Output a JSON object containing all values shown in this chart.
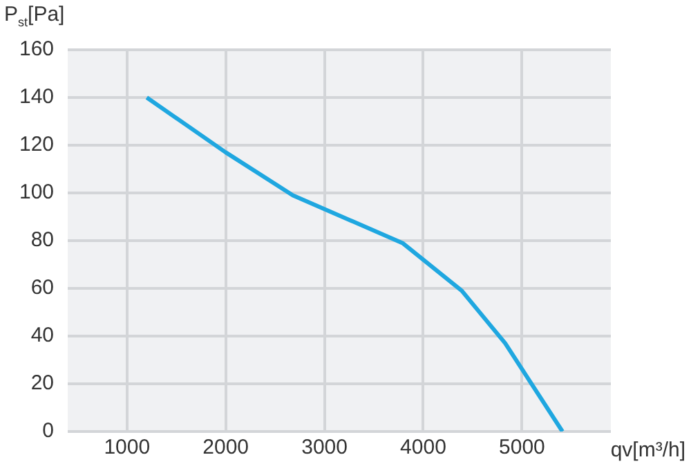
{
  "chart_data": {
    "type": "line",
    "xlabel": "qv[m³/h]",
    "ylabel": "P$_{st}$[Pa]",
    "x": [
      1200,
      2000,
      2680,
      3790,
      4390,
      4830,
      5410
    ],
    "series": [
      {
        "color": "#1fa7e0",
        "values": [
          140,
          117,
          99,
          79,
          59,
          37,
          0
        ]
      }
    ],
    "xlim": [
      400,
      5900
    ],
    "xticks": [
      1000,
      2000,
      3000,
      4000,
      5000
    ],
    "ylim": [
      0,
      160
    ],
    "yticks": [
      0,
      20,
      40,
      60,
      80,
      100,
      120,
      140,
      160
    ],
    "grid": true,
    "legend": false,
    "marker": "none",
    "line_style": "solid"
  }
}
